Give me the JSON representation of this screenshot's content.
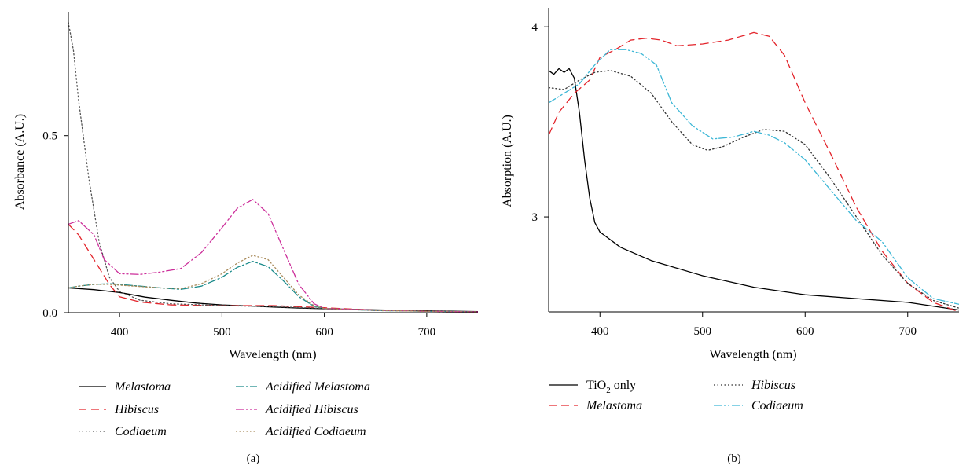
{
  "chart_data": [
    {
      "type": "line",
      "panel_label": "(a)",
      "xlabel": "Wavelength (nm)",
      "ylabel": "Absorbance (A.U.)",
      "xlim": [
        350,
        750
      ],
      "ylim": [
        0,
        0.85
      ],
      "xticks": [
        400,
        500,
        600,
        700
      ],
      "yticks": [
        0.0,
        0.5
      ],
      "ytick_labels": [
        "0.0",
        "0.5"
      ],
      "legend_position": "bottom",
      "grid": false,
      "series": [
        {
          "name": "Melastoma",
          "italic": true,
          "color": "#000000",
          "dash": "",
          "x": [
            350,
            375,
            400,
            425,
            450,
            475,
            500,
            525,
            550,
            575,
            600,
            650,
            700,
            750
          ],
          "y": [
            0.07,
            0.065,
            0.057,
            0.044,
            0.035,
            0.027,
            0.022,
            0.019,
            0.016,
            0.013,
            0.011,
            0.008,
            0.005,
            0.003
          ]
        },
        {
          "name": "Hibiscus",
          "italic": true,
          "color": "#e3242b",
          "dash": "10,6",
          "x": [
            350,
            360,
            375,
            390,
            400,
            420,
            450,
            500,
            550,
            600,
            650,
            700,
            750
          ],
          "y": [
            0.25,
            0.22,
            0.15,
            0.08,
            0.045,
            0.03,
            0.022,
            0.02,
            0.02,
            0.014,
            0.007,
            0.004,
            0.002
          ]
        },
        {
          "name": "Codiaeum",
          "italic": true,
          "color": "#555555",
          "dash": "1.5,3",
          "x": [
            350,
            355,
            360,
            370,
            380,
            390,
            400,
            420,
            450,
            500,
            550,
            600,
            650,
            700,
            750
          ],
          "y": [
            0.82,
            0.74,
            0.6,
            0.38,
            0.2,
            0.1,
            0.06,
            0.035,
            0.025,
            0.02,
            0.017,
            0.012,
            0.007,
            0.004,
            0.002
          ]
        },
        {
          "name": "Acidified Melastoma",
          "italic": true,
          "color": "#1a8a8a",
          "dash": "10,3,2,3",
          "x": [
            350,
            360,
            375,
            390,
            400,
            420,
            440,
            460,
            480,
            500,
            515,
            530,
            545,
            560,
            575,
            590,
            600,
            650,
            700,
            750
          ],
          "y": [
            0.07,
            0.075,
            0.08,
            0.082,
            0.08,
            0.075,
            0.07,
            0.066,
            0.075,
            0.1,
            0.128,
            0.145,
            0.13,
            0.09,
            0.045,
            0.018,
            0.012,
            0.006,
            0.004,
            0.002
          ]
        },
        {
          "name": "Acidified Hibiscus",
          "italic": true,
          "color": "#cc2e9a",
          "dash": "10,3,2,3,2,3",
          "x": [
            350,
            360,
            375,
            385,
            400,
            420,
            440,
            460,
            480,
            500,
            515,
            530,
            545,
            560,
            575,
            590,
            600,
            650,
            700,
            750
          ],
          "y": [
            0.25,
            0.26,
            0.22,
            0.15,
            0.11,
            0.108,
            0.115,
            0.125,
            0.17,
            0.24,
            0.295,
            0.32,
            0.28,
            0.18,
            0.08,
            0.025,
            0.012,
            0.007,
            0.004,
            0.002
          ]
        },
        {
          "name": "Acidified Codiaeum",
          "italic": true,
          "color": "#a88a5a",
          "dash": "1.5,3",
          "x": [
            350,
            360,
            375,
            390,
            400,
            420,
            440,
            460,
            480,
            500,
            515,
            530,
            545,
            560,
            575,
            590,
            600,
            650,
            700,
            750
          ],
          "y": [
            0.07,
            0.075,
            0.08,
            0.08,
            0.078,
            0.074,
            0.07,
            0.068,
            0.082,
            0.11,
            0.14,
            0.162,
            0.15,
            0.1,
            0.05,
            0.02,
            0.012,
            0.006,
            0.004,
            0.002
          ]
        }
      ]
    },
    {
      "type": "line",
      "panel_label": "(b)",
      "xlabel": "Wavelength (nm)",
      "ylabel": "Absorption (A.U.)",
      "xlim": [
        350,
        750
      ],
      "ylim": [
        2.5,
        4.1
      ],
      "xticks": [
        400,
        500,
        600,
        700
      ],
      "yticks": [
        3,
        4
      ],
      "ytick_labels": [
        "3",
        "4"
      ],
      "legend_position": "bottom",
      "grid": false,
      "series": [
        {
          "name": "TiO2 only",
          "name_main": "TiO",
          "name_sub": "2",
          "name_rest": " only",
          "italic": false,
          "color": "#000000",
          "dash": "",
          "x": [
            350,
            355,
            360,
            365,
            370,
            375,
            380,
            385,
            390,
            395,
            400,
            420,
            450,
            500,
            550,
            600,
            650,
            700,
            750
          ],
          "y": [
            3.77,
            3.75,
            3.78,
            3.76,
            3.78,
            3.73,
            3.55,
            3.3,
            3.1,
            2.97,
            2.92,
            2.84,
            2.77,
            2.69,
            2.63,
            2.59,
            2.57,
            2.55,
            2.51
          ]
        },
        {
          "name": "Melastoma",
          "italic": true,
          "color": "#e3242b",
          "dash": "10,6",
          "x": [
            350,
            360,
            375,
            390,
            400,
            415,
            430,
            445,
            460,
            475,
            500,
            525,
            550,
            565,
            580,
            600,
            625,
            650,
            675,
            700,
            725,
            750
          ],
          "y": [
            3.43,
            3.55,
            3.65,
            3.72,
            3.84,
            3.88,
            3.93,
            3.94,
            3.93,
            3.9,
            3.91,
            3.93,
            3.97,
            3.95,
            3.85,
            3.6,
            3.33,
            3.05,
            2.82,
            2.65,
            2.55,
            2.5
          ]
        },
        {
          "name": "Hibiscus",
          "italic": true,
          "color": "#333333",
          "dash": "1.5,3",
          "x": [
            350,
            365,
            380,
            395,
            410,
            430,
            450,
            470,
            490,
            505,
            520,
            540,
            560,
            580,
            600,
            625,
            650,
            675,
            700,
            725,
            750
          ],
          "y": [
            3.68,
            3.67,
            3.72,
            3.76,
            3.77,
            3.74,
            3.65,
            3.5,
            3.38,
            3.35,
            3.37,
            3.42,
            3.46,
            3.45,
            3.38,
            3.2,
            3.0,
            2.8,
            2.65,
            2.56,
            2.52
          ]
        },
        {
          "name": "Codiaeum",
          "italic": true,
          "color": "#3db7d6",
          "dash": "10,3,2,3,2,3",
          "x": [
            350,
            365,
            380,
            395,
            410,
            425,
            440,
            455,
            470,
            490,
            510,
            530,
            550,
            565,
            580,
            600,
            625,
            650,
            675,
            700,
            725,
            750
          ],
          "y": [
            3.6,
            3.65,
            3.7,
            3.8,
            3.88,
            3.88,
            3.86,
            3.8,
            3.6,
            3.48,
            3.41,
            3.42,
            3.45,
            3.43,
            3.39,
            3.3,
            3.14,
            2.98,
            2.87,
            2.68,
            2.57,
            2.54
          ]
        }
      ]
    }
  ]
}
